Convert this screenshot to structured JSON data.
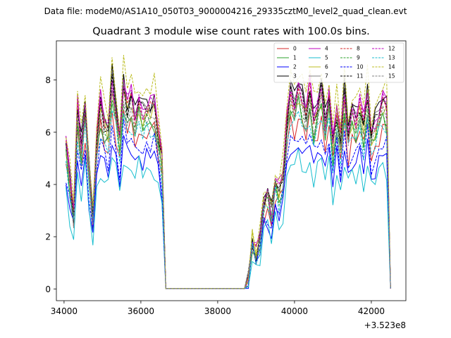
{
  "chart_data": {
    "type": "line",
    "suptitle": "Data file: modeM0/AS1A10_050T03_9000004216_29335cztM0_level2_quad_clean.evt",
    "title": "Quadrant 3 module wise count rates with 100.0s bins.",
    "xlabel": "",
    "ylabel": "",
    "x_offset_label": "+3.523e8",
    "xlim": [
      33800,
      42900
    ],
    "ylim": [
      -0.45,
      9.5
    ],
    "xticks": [
      34000,
      36000,
      38000,
      40000,
      42000
    ],
    "xtick_labels": [
      "34000",
      "36000",
      "38000",
      "40000",
      "42000"
    ],
    "yticks": [
      0,
      2,
      4,
      6,
      8
    ],
    "ytick_labels": [
      "0",
      "2",
      "4",
      "6",
      "8"
    ],
    "legend_position": "top-right",
    "series": [
      {
        "name": "0",
        "color": "#d62728",
        "dash": false
      },
      {
        "name": "1",
        "color": "#2ca02c",
        "dash": false
      },
      {
        "name": "2",
        "color": "#0000ff",
        "dash": false
      },
      {
        "name": "3",
        "color": "#000000",
        "dash": false
      },
      {
        "name": "4",
        "color": "#bf00bf",
        "dash": false
      },
      {
        "name": "5",
        "color": "#17becf",
        "dash": false
      },
      {
        "name": "6",
        "color": "#bcbd22",
        "dash": false
      },
      {
        "name": "7",
        "color": "#7f7f7f",
        "dash": false
      },
      {
        "name": "8",
        "color": "#d62728",
        "dash": true
      },
      {
        "name": "9",
        "color": "#2ca02c",
        "dash": true
      },
      {
        "name": "10",
        "color": "#0000ff",
        "dash": true
      },
      {
        "name": "11",
        "color": "#000000",
        "dash": true
      },
      {
        "name": "12",
        "color": "#bf00bf",
        "dash": true
      },
      {
        "name": "13",
        "color": "#17becf",
        "dash": true
      },
      {
        "name": "14",
        "color": "#bcbd22",
        "dash": true
      },
      {
        "name": "15",
        "color": "#7f7f7f",
        "dash": true
      }
    ]
  }
}
